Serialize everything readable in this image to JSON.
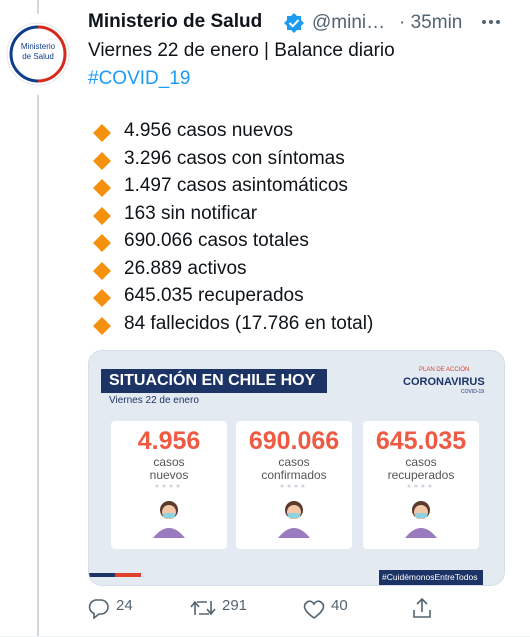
{
  "avatar_label": "Ministerio de Salud",
  "author": {
    "name": "Ministerio de Salud",
    "handle": "@mini…",
    "time": "· 35min"
  },
  "text": {
    "line1": "Viernes 22 de enero | Balance diario",
    "hashtag": "#COVID_19"
  },
  "bullets": [
    "4.956 casos nuevos",
    "3.296 casos con síntomas",
    "1.497 casos asintomáticos",
    "163 sin notificar",
    "690.066 casos totales",
    "26.889 activos",
    "645.035 recuperados",
    "84 fallecidos (17.786 en total)"
  ],
  "image": {
    "title": "SITUACIÓN EN CHILE HOY",
    "date": "Viernes 22 de enero",
    "brand": {
      "top": "PLAN DE ACCIÓN",
      "name": "CORONAVIRUS",
      "sub": "COVID-19"
    },
    "cards": [
      {
        "value": "4.956",
        "label": [
          "casos",
          "nuevos"
        ]
      },
      {
        "value": "690.066",
        "label": [
          "casos",
          "confirmados"
        ]
      },
      {
        "value": "645.035",
        "label": [
          "casos",
          "recuperados"
        ]
      }
    ],
    "footer_tag": "#CuidémonosEntreTodos"
  },
  "actions": {
    "replies": 24,
    "retweets": 291,
    "likes": 40
  }
}
